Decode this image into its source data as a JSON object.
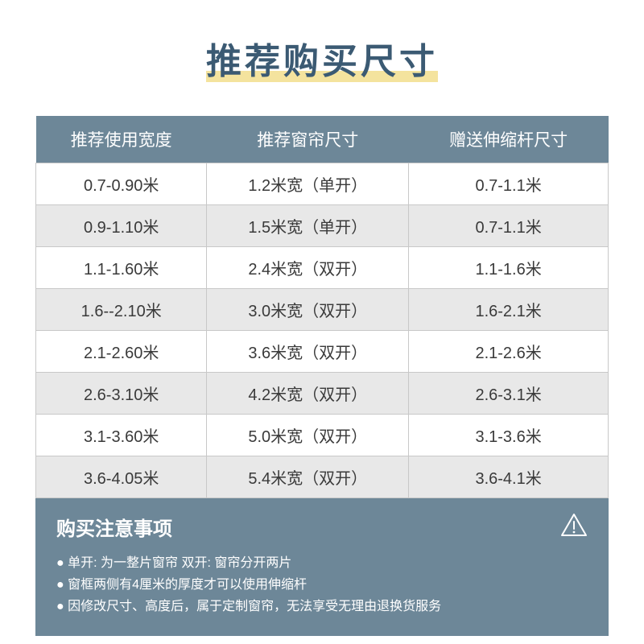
{
  "colors": {
    "title_text": "#3b5a73",
    "title_underline": "#f4e39e",
    "header_bg": "#6d8798",
    "header_text": "#ffffff",
    "row_bg": "#ffffff",
    "row_alt_bg": "#e8e8e8",
    "cell_text": "#3a3a3a",
    "cell_border": "#c8c8c8",
    "notice_bg": "#6d8798",
    "notice_text": "#ffffff"
  },
  "title": "推荐购买尺寸",
  "table": {
    "columns": [
      "推荐使用宽度",
      "推荐窗帘尺寸",
      "赠送伸缩杆尺寸"
    ],
    "rows": [
      [
        "0.7-0.90米",
        "1.2米宽（单开）",
        "0.7-1.1米"
      ],
      [
        "0.9-1.10米",
        "1.5米宽（单开）",
        "0.7-1.1米"
      ],
      [
        "1.1-1.60米",
        "2.4米宽（双开）",
        "1.1-1.6米"
      ],
      [
        "1.6--2.10米",
        "3.0米宽（双开）",
        "1.6-2.1米"
      ],
      [
        "2.1-2.60米",
        "3.6米宽（双开）",
        "2.1-2.6米"
      ],
      [
        "2.6-3.10米",
        "4.2米宽（双开）",
        "2.6-3.1米"
      ],
      [
        "3.1-3.60米",
        "5.0米宽（双开）",
        "3.1-3.6米"
      ],
      [
        "3.6-4.05米",
        "5.4米宽（双开）",
        "3.6-4.1米"
      ]
    ]
  },
  "notice": {
    "title": "购买注意事项",
    "items": [
      "单开: 为一整片窗帘  双开: 窗帘分开两片",
      "窗框两侧有4厘米的厚度才可以使用伸缩杆",
      "因修改尺寸、高度后，属于定制窗帘，无法享受无理由退换货服务"
    ]
  }
}
